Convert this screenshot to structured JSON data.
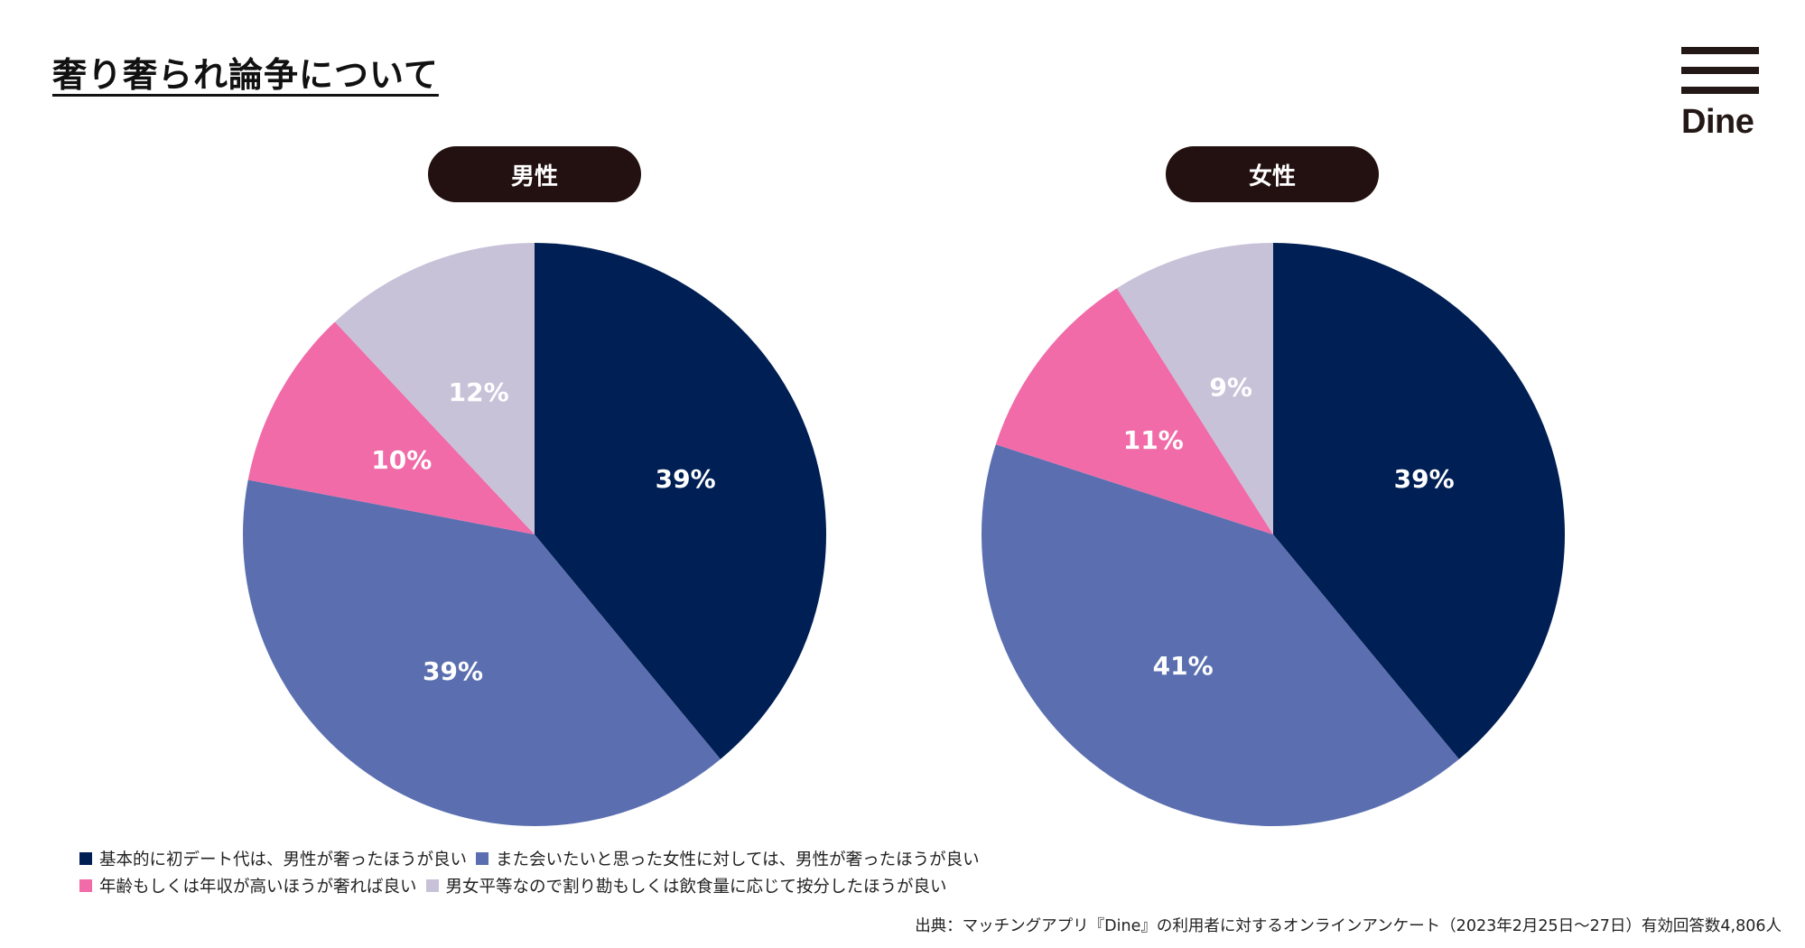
{
  "title": "奢り奢られ論争について",
  "logo": {
    "text": "Dine"
  },
  "colors": {
    "basic_first_date": "#001f54",
    "want_to_meet_again": "#5b6fb0",
    "higher_age_income": "#f06ba8",
    "split_equally": "#c8c2d9",
    "pill_bg": "#231010"
  },
  "legend": [
    {
      "label": "基本的に初デート代は、男性が奢ったほうが良い",
      "color": "#001f54"
    },
    {
      "label": "また会いたいと思った女性に対しては、男性が奢ったほうが良い",
      "color": "#5b6fb0"
    },
    {
      "label": "年齢もしくは年収が高いほうが奢れば良い",
      "color": "#f06ba8"
    },
    {
      "label": "男女平等なので割り勘もしくは飲食量に応じて按分したほうが良い",
      "color": "#c8c2d9"
    }
  ],
  "chart_data": [
    {
      "type": "pie",
      "title": "男性",
      "slices": [
        {
          "label": "基本的に初デート代は、男性が奢ったほうが良い",
          "value": 39,
          "display": "39%",
          "color": "#001f54"
        },
        {
          "label": "また会いたいと思った女性に対しては、男性が奢ったほうが良い",
          "value": 39,
          "display": "39%",
          "color": "#5b6fb0"
        },
        {
          "label": "年齢もしくは年収が高いほうが奢れば良い",
          "value": 10,
          "display": "10%",
          "color": "#f06ba8"
        },
        {
          "label": "男女平等なので割り勘もしくは飲食量に応じて按分したほうが良い",
          "value": 12,
          "display": "12%",
          "color": "#c8c2d9"
        }
      ]
    },
    {
      "type": "pie",
      "title": "女性",
      "slices": [
        {
          "label": "基本的に初デート代は、男性が奢ったほうが良い",
          "value": 39,
          "display": "39%",
          "color": "#001f54"
        },
        {
          "label": "また会いたいと思った女性に対しては、男性が奢ったほうが良い",
          "value": 41,
          "display": "41%",
          "color": "#5b6fb0"
        },
        {
          "label": "年齢もしくは年収が高いほうが奢れば良い",
          "value": 11,
          "display": "11%",
          "color": "#f06ba8"
        },
        {
          "label": "男女平等なので割り勘もしくは飲食量に応じて按分したほうが良い",
          "value": 9,
          "display": "9%",
          "color": "#c8c2d9"
        }
      ]
    }
  ],
  "source": "出典：マッチングアプリ『Dine』の利用者に対するオンラインアンケート（2023年2月25日〜27日）有効回答数4,806人"
}
